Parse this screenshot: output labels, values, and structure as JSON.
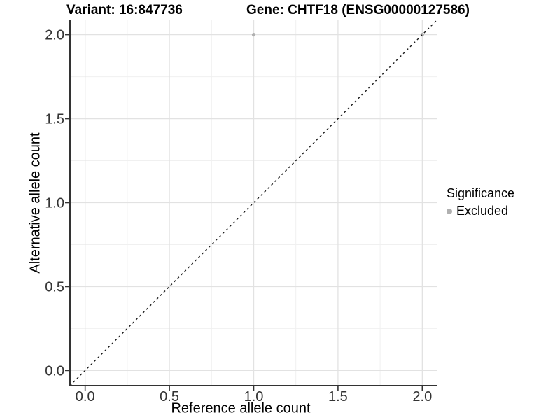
{
  "chart_data": {
    "type": "scatter",
    "titles": {
      "left": "Variant: 16:847736",
      "right": "Gene: CHTF18 (ENSG00000127586)"
    },
    "x_axis": {
      "label": "Reference allele count",
      "ticks": [
        0.0,
        0.5,
        1.0,
        1.5,
        2.0
      ],
      "range": [
        -0.09,
        2.09
      ]
    },
    "y_axis": {
      "label": "Alternative allele count",
      "ticks": [
        0.0,
        0.5,
        1.0,
        1.5,
        2.0
      ],
      "range": [
        -0.09,
        2.09
      ]
    },
    "points": [
      {
        "x": 1.0,
        "y": 2.0,
        "significance": "Excluded"
      },
      {
        "x": 2.0,
        "y": 2.0,
        "significance": "Excluded"
      }
    ],
    "reference_line": {
      "type": "abline",
      "slope": 1,
      "intercept": 0,
      "style": "dashed",
      "color": "#1a1a1a"
    },
    "legend": {
      "title": "Significance",
      "position": "right",
      "items": [
        {
          "label": "Excluded",
          "color": "#b0b0b0"
        }
      ]
    },
    "grid": true,
    "colors": {
      "background": "#ffffff",
      "point_excluded": "#b3b3b3",
      "grid_major": "#e2e2e2",
      "grid_minor": "#f0f0f0",
      "axis_line": "#333333",
      "tick_text": "#333333",
      "title_text": "#000000"
    }
  }
}
